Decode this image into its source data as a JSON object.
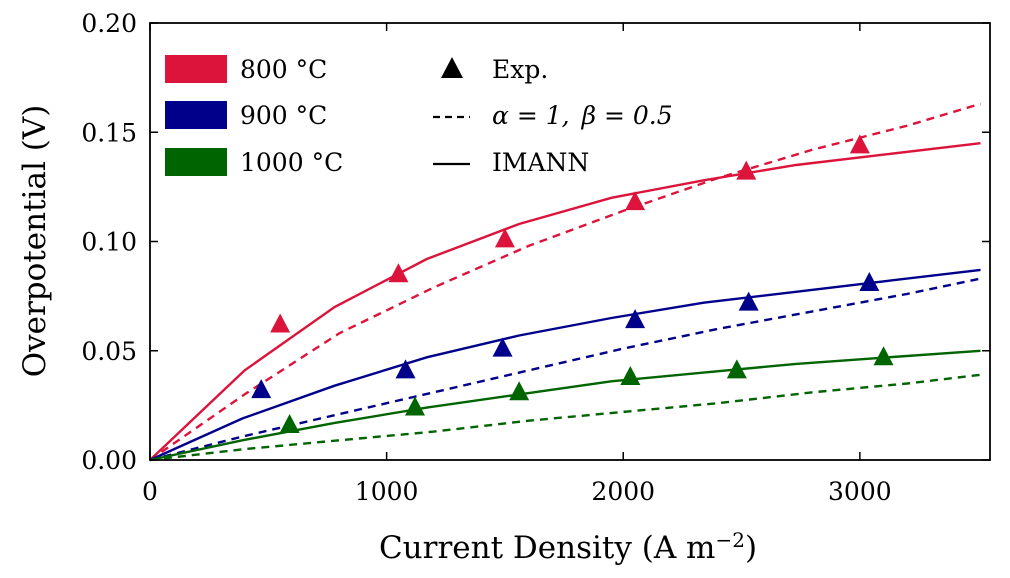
{
  "chart_data": {
    "type": "line",
    "xlabel": "Current Density",
    "xlabel_unit": "(A m",
    "xlabel_unit_exp": "−2",
    "xlabel_unit_close": ")",
    "ylabel": "Overpotential (V)",
    "xlim": [
      0,
      3550
    ],
    "ylim": [
      0,
      0.2
    ],
    "xticks": [
      {
        "value": 0,
        "label": "0"
      },
      {
        "value": 1000,
        "label": "1000"
      },
      {
        "value": 2000,
        "label": "2000"
      },
      {
        "value": 3000,
        "label": "3000"
      }
    ],
    "yticks": [
      {
        "value": 0,
        "label": "0.00"
      },
      {
        "value": 0.05,
        "label": "0.05"
      },
      {
        "value": 0.1,
        "label": "0.10"
      },
      {
        "value": 0.15,
        "label": "0.15"
      },
      {
        "value": 0.2,
        "label": "0.20"
      }
    ],
    "grid": false,
    "legend_placement": "top-left",
    "temperatures": [
      {
        "name": "800 °C",
        "color": "#dc143c",
        "exp": [
          [
            550,
            0.062
          ],
          [
            1050,
            0.085
          ],
          [
            1500,
            0.101
          ],
          [
            2050,
            0.118
          ],
          [
            2520,
            0.132
          ],
          [
            3000,
            0.144
          ]
        ],
        "imann": [
          [
            0,
            0
          ],
          [
            400,
            0.041
          ],
          [
            780,
            0.07
          ],
          [
            1170,
            0.092
          ],
          [
            1560,
            0.108
          ],
          [
            1950,
            0.12
          ],
          [
            2340,
            0.128
          ],
          [
            2730,
            0.135
          ],
          [
            3120,
            0.14
          ],
          [
            3510,
            0.145
          ]
        ],
        "model": [
          [
            0,
            0
          ],
          [
            400,
            0.03
          ],
          [
            800,
            0.058
          ],
          [
            1200,
            0.079
          ],
          [
            1600,
            0.098
          ],
          [
            2000,
            0.114
          ],
          [
            2400,
            0.129
          ],
          [
            2800,
            0.142
          ],
          [
            3200,
            0.153
          ],
          [
            3510,
            0.163
          ]
        ]
      },
      {
        "name": "900 °C",
        "color": "#00008b",
        "exp": [
          [
            470,
            0.032
          ],
          [
            1080,
            0.041
          ],
          [
            1490,
            0.051
          ],
          [
            2050,
            0.064
          ],
          [
            2530,
            0.072
          ],
          [
            3040,
            0.081
          ]
        ],
        "imann": [
          [
            0,
            0
          ],
          [
            390,
            0.019
          ],
          [
            780,
            0.034
          ],
          [
            1170,
            0.047
          ],
          [
            1560,
            0.057
          ],
          [
            1950,
            0.065
          ],
          [
            2340,
            0.072
          ],
          [
            2730,
            0.077
          ],
          [
            3120,
            0.082
          ],
          [
            3510,
            0.087
          ]
        ],
        "model": [
          [
            0,
            0
          ],
          [
            400,
            0.011
          ],
          [
            800,
            0.021
          ],
          [
            1200,
            0.031
          ],
          [
            1600,
            0.041
          ],
          [
            2000,
            0.051
          ],
          [
            2400,
            0.06
          ],
          [
            2800,
            0.068
          ],
          [
            3200,
            0.076
          ],
          [
            3510,
            0.083
          ]
        ]
      },
      {
        "name": "1000 °C",
        "color": "#006400",
        "exp": [
          [
            590,
            0.016
          ],
          [
            1120,
            0.024
          ],
          [
            1560,
            0.031
          ],
          [
            2030,
            0.038
          ],
          [
            2480,
            0.041
          ],
          [
            3100,
            0.047
          ]
        ],
        "imann": [
          [
            0,
            0
          ],
          [
            390,
            0.009
          ],
          [
            780,
            0.017
          ],
          [
            1170,
            0.024
          ],
          [
            1560,
            0.03
          ],
          [
            1950,
            0.036
          ],
          [
            2340,
            0.04
          ],
          [
            2730,
            0.044
          ],
          [
            3120,
            0.047
          ],
          [
            3510,
            0.05
          ]
        ],
        "model": [
          [
            0,
            0
          ],
          [
            400,
            0.005
          ],
          [
            800,
            0.009
          ],
          [
            1200,
            0.013
          ],
          [
            1600,
            0.018
          ],
          [
            2000,
            0.022
          ],
          [
            2400,
            0.026
          ],
          [
            2800,
            0.031
          ],
          [
            3200,
            0.035
          ],
          [
            3510,
            0.039
          ]
        ]
      }
    ],
    "legend": {
      "temperatures": [
        "800 °C",
        "900 °C",
        "1000 °C"
      ],
      "exp_label": "Exp.",
      "model_label_alpha": "α = 1,",
      "model_label_beta": "β = 0.5",
      "imann_label": "IMANN"
    }
  }
}
